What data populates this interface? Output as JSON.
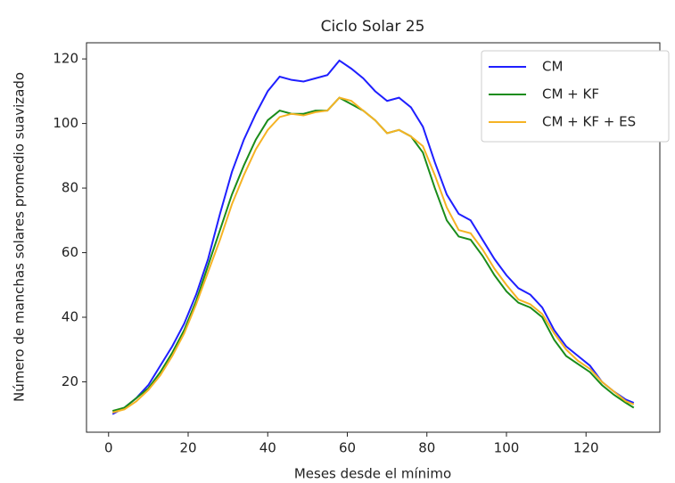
{
  "chart_data": {
    "type": "line",
    "title": "Ciclo Solar 25",
    "xlabel": "Meses desde el mínimo",
    "ylabel": "Número de manchas solares promedio suavizado",
    "x": [
      1,
      4,
      7,
      10,
      13,
      16,
      19,
      22,
      25,
      28,
      31,
      34,
      37,
      40,
      43,
      46,
      49,
      52,
      55,
      58,
      61,
      64,
      67,
      70,
      73,
      76,
      79,
      82,
      85,
      88,
      91,
      94,
      97,
      100,
      103,
      106,
      109,
      112,
      115,
      118,
      121,
      124,
      127,
      130,
      132
    ],
    "series": [
      {
        "name": "CM",
        "color": "#1f1fff",
        "values": [
          10,
          12,
          15,
          19,
          25,
          31,
          38,
          47,
          58,
          72,
          85,
          95,
          103,
          110,
          114.5,
          113.5,
          113,
          114,
          115,
          119.5,
          117,
          114,
          110,
          107,
          108,
          105,
          99,
          88,
          78,
          72,
          70,
          64,
          58,
          53,
          49,
          47,
          43,
          36,
          31,
          28,
          25,
          20,
          17,
          14.5,
          13.5
        ]
      },
      {
        "name": "CM + KF",
        "color": "#1a8c1a",
        "values": [
          11,
          12,
          15,
          18,
          23,
          29,
          36,
          45,
          56,
          67,
          78,
          87,
          95,
          101,
          104,
          103,
          103,
          104,
          104,
          108,
          106,
          104,
          101,
          97,
          98,
          96,
          91,
          80,
          70,
          65,
          64,
          59,
          53,
          48,
          44.5,
          43,
          40,
          33,
          28,
          25.5,
          23,
          19,
          16,
          13.5,
          12
        ]
      },
      {
        "name": "CM + KF + ES",
        "color": "#f5b324",
        "values": [
          10.5,
          11.5,
          14,
          17.5,
          22,
          28,
          35,
          44,
          54,
          64,
          75,
          84,
          92,
          98,
          102,
          103,
          102.5,
          103.5,
          104,
          108,
          107,
          104,
          101,
          97,
          98,
          96,
          93,
          84,
          74,
          67,
          66,
          61,
          55,
          50,
          45.5,
          44,
          41,
          35,
          30,
          26.5,
          24,
          20,
          17,
          14,
          13
        ]
      }
    ],
    "xlim": [
      -5.55,
      138.55
    ],
    "ylim": [
      4.4,
      125
    ],
    "xticks": [
      0,
      20,
      40,
      60,
      80,
      100,
      120
    ],
    "yticks": [
      20,
      40,
      60,
      80,
      100,
      120
    ],
    "legend": "upper-right"
  }
}
